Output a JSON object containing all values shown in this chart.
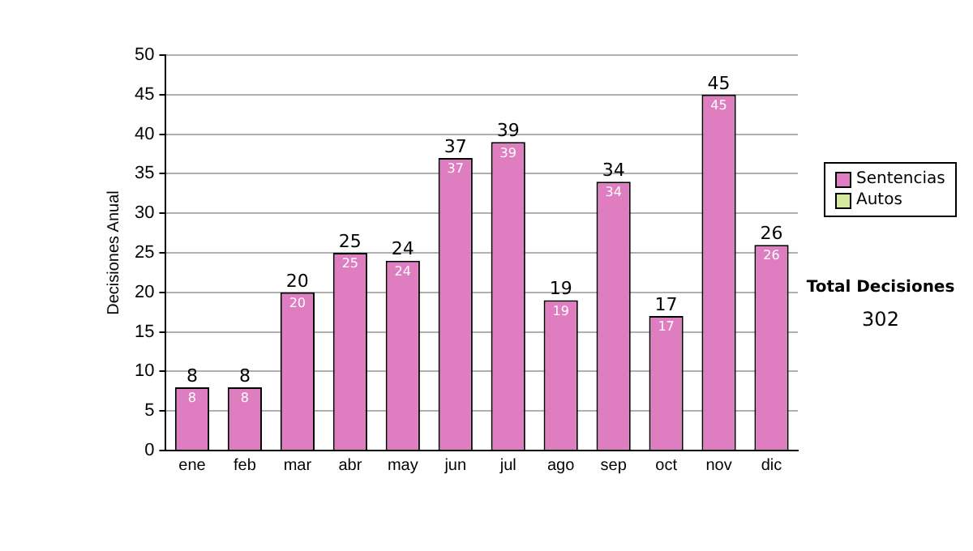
{
  "chart_data": {
    "type": "bar",
    "ylabel": "Decisiones Anual",
    "categories": [
      "ene",
      "feb",
      "mar",
      "abr",
      "may",
      "jun",
      "jul",
      "ago",
      "sep",
      "oct",
      "nov",
      "dic"
    ],
    "series": [
      {
        "name": "Sentencias",
        "color": "#de7ec0",
        "values": [
          8,
          8,
          20,
          25,
          24,
          37,
          39,
          19,
          34,
          17,
          45,
          26
        ]
      },
      {
        "name": "Autos",
        "color": "#d4eaa0",
        "values": [
          null,
          null,
          null,
          null,
          null,
          null,
          null,
          null,
          null,
          null,
          null,
          null
        ]
      }
    ],
    "stacked": true,
    "totals": [
      "8",
      "8",
      "20",
      "25",
      "24",
      "37",
      "39",
      "19",
      "34",
      "17",
      "45",
      "26"
    ],
    "ylim": [
      0,
      50
    ],
    "yticks": [
      0,
      5,
      10,
      15,
      20,
      25,
      30,
      35,
      40,
      45,
      50
    ],
    "grid": "y",
    "legend": "right",
    "data_labels": true,
    "annotations": [
      "Total Decisiones",
      "302"
    ]
  }
}
